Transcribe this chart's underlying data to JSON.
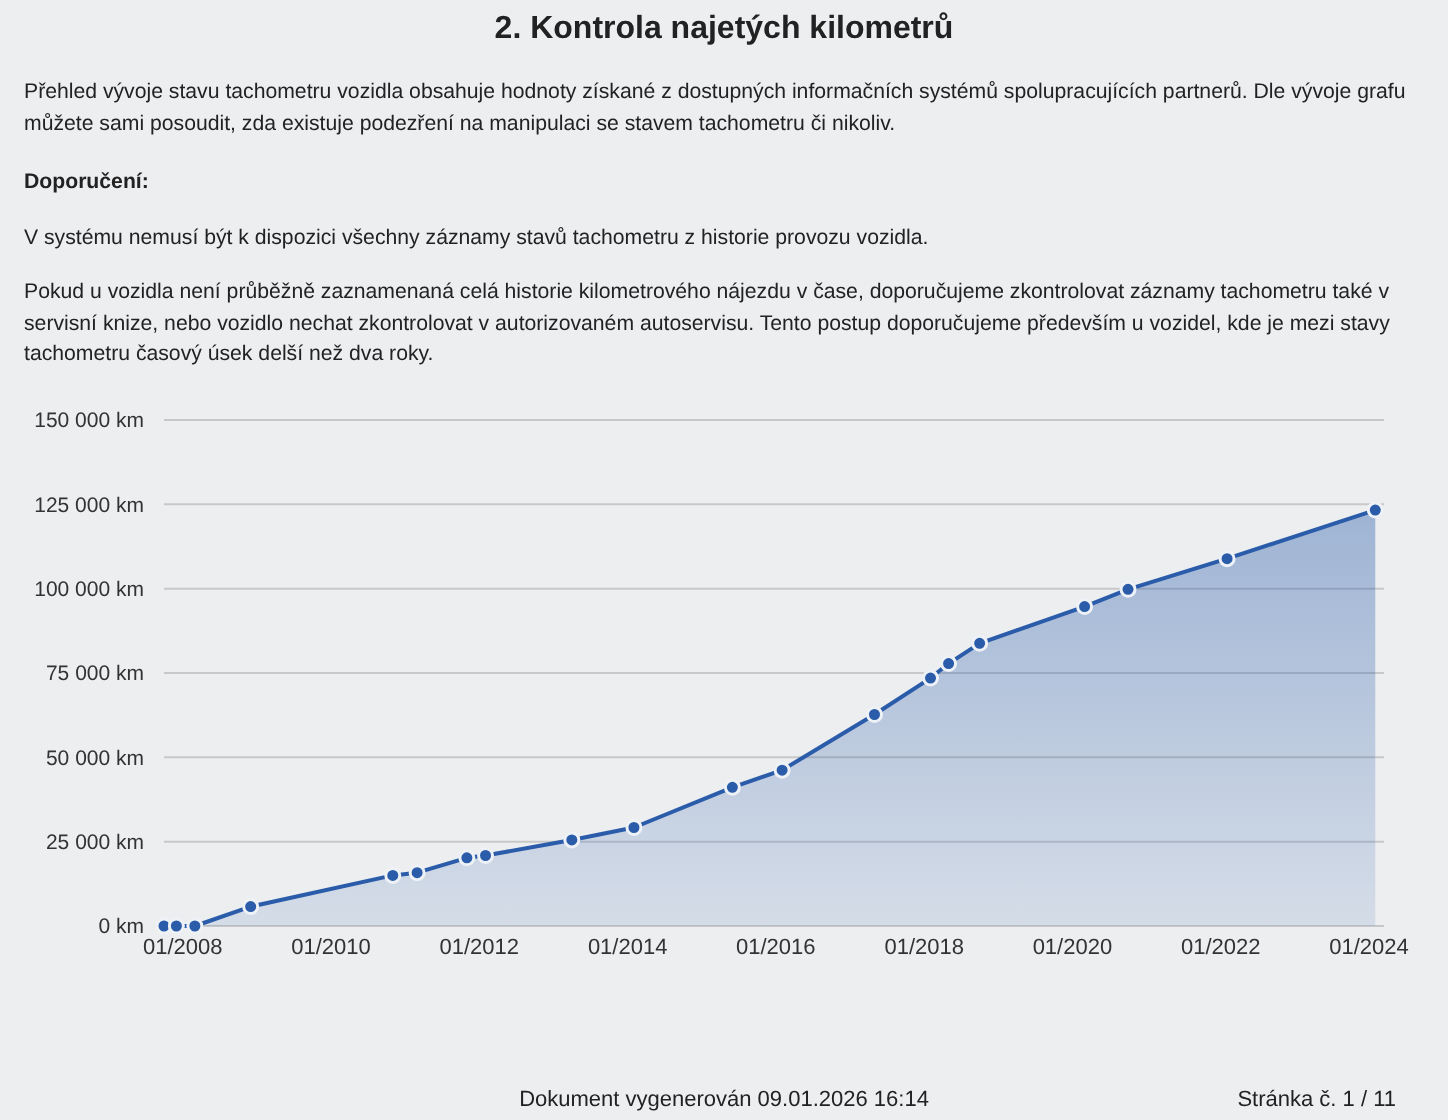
{
  "chart_data": {
    "type": "area",
    "title": "2. Kontrola najetých kilometrů",
    "annotations": [
      "Přehled vývoje stavu tachometru vozidla obsahuje hodnoty získané z dostupných informačních systémů spolupracujících partnerů. Dle vývoje grafu můžete sami posoudit, zda existuje podezření na manipulaci se stavem tachometru či nikoliv.",
      "Doporučení:",
      "V systému nemusí být k dispozici všechny záznamy stavů tachometru z historie provozu vozidla.",
      "Pokud u vozidla není průběžně zaznamenaná celá historie kilometrového nájezdu v čase, doporučujeme zkontrolovat záznamy tachometru také v servisní knize, nebo vozidlo nechat zkontrolovat v autorizovaném autoservisu. Tento postup doporučujeme především u vozidel, kde je mezi stavy tachometru časový úsek delší než dva roky.",
      "Dokument vygenerován 09.01.2026 16:14",
      "Stránka č. 1 / 11"
    ],
    "x": [
      "2007-10",
      "2007-12",
      "2008-03",
      "2008-12",
      "2010-11",
      "2011-03",
      "2011-11",
      "2012-02",
      "2013-04",
      "2014-02",
      "2015-06",
      "2016-02",
      "2017-05",
      "2018-02",
      "2018-05",
      "2018-10",
      "2020-03",
      "2020-10",
      "2022-02",
      "2024-02"
    ],
    "values": [
      0,
      0,
      0,
      5750,
      15000,
      15800,
      20200,
      20900,
      25500,
      29200,
      41100,
      46200,
      62700,
      73500,
      77800,
      83800,
      94700,
      99800,
      108900,
      123300
    ],
    "color": "#2a5caa",
    "xlim": [
      "2007-10-01",
      "2024-03-15"
    ],
    "xticks": [
      {
        "value": "2008-01",
        "label": "01/2008"
      },
      {
        "value": "2010-01",
        "label": "01/2010"
      },
      {
        "value": "2012-01",
        "label": "01/2012"
      },
      {
        "value": "2014-01",
        "label": "01/2014"
      },
      {
        "value": "2016-01",
        "label": "01/2016"
      },
      {
        "value": "2018-01",
        "label": "01/2018"
      },
      {
        "value": "2020-01",
        "label": "01/2020"
      },
      {
        "value": "2022-01",
        "label": "01/2022"
      },
      {
        "value": "2024-01",
        "label": "01/2024"
      }
    ],
    "ylim": [
      0,
      150000
    ],
    "yticks": [
      {
        "value": 0,
        "label": "0 km"
      },
      {
        "value": 25000,
        "label": "25 000 km"
      },
      {
        "value": 50000,
        "label": "50 000 km"
      },
      {
        "value": 75000,
        "label": "75 000 km"
      },
      {
        "value": 100000,
        "label": "100 000 km"
      },
      {
        "value": 125000,
        "label": "125 000 km"
      },
      {
        "value": 150000,
        "label": "150 000 km"
      }
    ],
    "grid": "y",
    "marker": "circle"
  }
}
